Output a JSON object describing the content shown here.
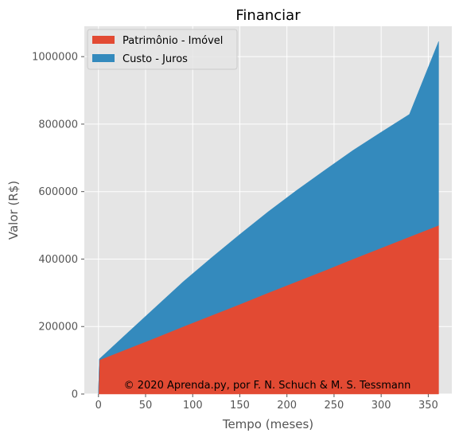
{
  "chart_data": {
    "type": "area",
    "stacked": true,
    "title": "Financiar",
    "xlabel": "Tempo (meses)",
    "ylabel": "Valor (R$)",
    "xlim": [
      -15,
      375
    ],
    "ylim": [
      0,
      1090000
    ],
    "xticks": [
      0,
      50,
      100,
      150,
      200,
      250,
      300,
      350
    ],
    "yticks": [
      0,
      200000,
      400000,
      600000,
      800000,
      1000000
    ],
    "grid": true,
    "legend_position": "top-left",
    "x": [
      0,
      1,
      30,
      60,
      90,
      120,
      150,
      180,
      210,
      240,
      270,
      300,
      330,
      361
    ],
    "series": [
      {
        "name": "Patrimônio - Imóvel",
        "color": "#E24A33",
        "values": [
          0,
          101000,
          133000,
          166000,
          200000,
          233000,
          266000,
          300000,
          333000,
          366000,
          400000,
          433000,
          466000,
          500000
        ]
      },
      {
        "name": "Custo - Juros",
        "color": "#348ABD",
        "values": [
          0,
          3000,
          46000,
          90000,
          133000,
          171000,
          207000,
          240000,
          270000,
          297000,
          322000,
          343000,
          363000,
          545000
        ]
      }
    ],
    "annotation": "© 2020 Aprenda.py, por F. N. Schuch & M. S. Tessmann"
  }
}
